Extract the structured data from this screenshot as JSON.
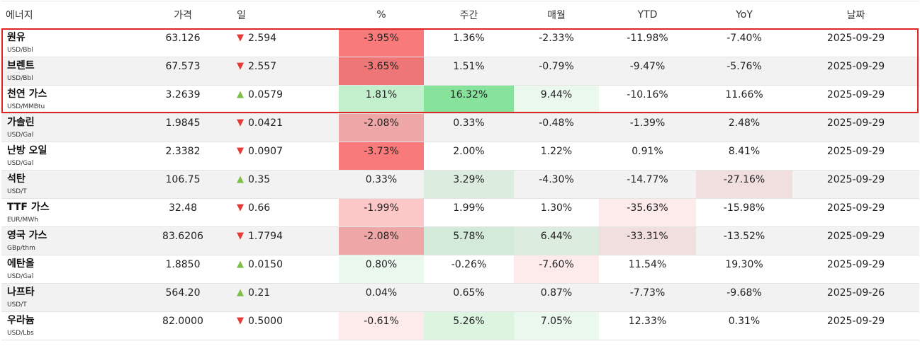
{
  "headers": [
    "에너지",
    "가격",
    "일",
    "%",
    "주간",
    "매월",
    "YTD",
    "YoY",
    "날짜"
  ],
  "direction_icons": {
    "up": "triangle-up-icon",
    "down": "triangle-down-icon"
  },
  "colors": {
    "up_arrow": "#7cc04a",
    "down_arrow": "#e53935",
    "highlight_border": "#e02525"
  },
  "rows": [
    {
      "name": "원유",
      "unit": "USD/Bbl",
      "price": "63.126",
      "dir": "down",
      "day": "2.594",
      "pct": "-3.95%",
      "week": "1.36%",
      "month": "-2.33%",
      "ytd": "-11.98%",
      "yoy": "-7.40%",
      "date": "2025-09-29",
      "bg": {
        "pct": "#f87a7a",
        "week": "",
        "month": "",
        "ytd": "",
        "yoy": ""
      }
    },
    {
      "name": "브렌트",
      "unit": "USD/Bbl",
      "price": "67.573",
      "dir": "down",
      "day": "2.557",
      "pct": "-3.65%",
      "week": "1.51%",
      "month": "-0.79%",
      "ytd": "-9.47%",
      "yoy": "-5.76%",
      "date": "2025-09-29",
      "bg": {
        "pct": "#ef7676",
        "week": "",
        "month": "",
        "ytd": "",
        "yoy": ""
      }
    },
    {
      "name": "천연 가스",
      "unit": "USD/MMBtu",
      "price": "3.2639",
      "dir": "up",
      "day": "0.0579",
      "pct": "1.81%",
      "week": "16.32%",
      "month": "9.44%",
      "ytd": "-10.16%",
      "yoy": "11.66%",
      "date": "2025-09-29",
      "bg": {
        "pct": "#c2f0cd",
        "week": "#87e39c",
        "month": "#ebf8ee",
        "ytd": "",
        "yoy": ""
      }
    },
    {
      "name": "가솔린",
      "unit": "USD/Gal",
      "price": "1.9845",
      "dir": "down",
      "day": "0.0421",
      "pct": "-2.08%",
      "week": "0.33%",
      "month": "-0.48%",
      "ytd": "-1.39%",
      "yoy": "2.48%",
      "date": "2025-09-29",
      "bg": {
        "pct": "#efa6a6",
        "week": "",
        "month": "",
        "ytd": "",
        "yoy": ""
      }
    },
    {
      "name": "난방 오일",
      "unit": "USD/Gal",
      "price": "2.3382",
      "dir": "down",
      "day": "0.0907",
      "pct": "-3.73%",
      "week": "2.00%",
      "month": "1.22%",
      "ytd": "0.91%",
      "yoy": "8.41%",
      "date": "2025-09-29",
      "bg": {
        "pct": "#f87a7a",
        "week": "",
        "month": "",
        "ytd": "",
        "yoy": ""
      }
    },
    {
      "name": "석탄",
      "unit": "USD/T",
      "price": "106.75",
      "dir": "up",
      "day": "0.35",
      "pct": "0.33%",
      "week": "3.29%",
      "month": "-4.30%",
      "ytd": "-14.77%",
      "yoy": "-27.16%",
      "date": "2025-09-29",
      "bg": {
        "pct": "",
        "week": "#dcecdf",
        "month": "",
        "ytd": "",
        "yoy": "#f1dede"
      }
    },
    {
      "name": "TTF 가스",
      "unit": "EUR/MWh",
      "price": "32.48",
      "dir": "down",
      "day": "0.66",
      "pct": "-1.99%",
      "week": "1.99%",
      "month": "1.30%",
      "ytd": "-35.63%",
      "yoy": "-15.98%",
      "date": "2025-09-29",
      "bg": {
        "pct": "#fcc7c7",
        "week": "",
        "month": "",
        "ytd": "#fdeaea",
        "yoy": ""
      }
    },
    {
      "name": "영국 가스",
      "unit": "GBp/thm",
      "price": "83.6206",
      "dir": "down",
      "day": "1.7794",
      "pct": "-2.08%",
      "week": "5.78%",
      "month": "6.44%",
      "ytd": "-33.31%",
      "yoy": "-13.52%",
      "date": "2025-09-29",
      "bg": {
        "pct": "#efa6a6",
        "week": "#d2ead7",
        "month": "#dcecdf",
        "ytd": "#f1dede",
        "yoy": ""
      }
    },
    {
      "name": "에탄올",
      "unit": "USD/Gal",
      "price": "1.8850",
      "dir": "up",
      "day": "0.0150",
      "pct": "0.80%",
      "week": "-0.26%",
      "month": "-7.60%",
      "ytd": "11.54%",
      "yoy": "19.30%",
      "date": "2025-09-29",
      "bg": {
        "pct": "#ebf8ee",
        "week": "",
        "month": "#fdeaea",
        "ytd": "",
        "yoy": ""
      }
    },
    {
      "name": "나프타",
      "unit": "USD/T",
      "price": "564.20",
      "dir": "up",
      "day": "0.21",
      "pct": "0.04%",
      "week": "0.65%",
      "month": "0.87%",
      "ytd": "-7.73%",
      "yoy": "-9.68%",
      "date": "2025-09-26",
      "bg": {
        "pct": "",
        "week": "",
        "month": "",
        "ytd": "",
        "yoy": ""
      }
    },
    {
      "name": "우라늄",
      "unit": "USD/Lbs",
      "price": "82.0000",
      "dir": "down",
      "day": "0.5000",
      "pct": "-0.61%",
      "week": "5.26%",
      "month": "7.05%",
      "ytd": "12.33%",
      "yoy": "0.31%",
      "date": "2025-09-29",
      "bg": {
        "pct": "#fdeaea",
        "week": "#dcf5e1",
        "month": "#ebf8ee",
        "ytd": "",
        "yoy": ""
      }
    }
  ]
}
